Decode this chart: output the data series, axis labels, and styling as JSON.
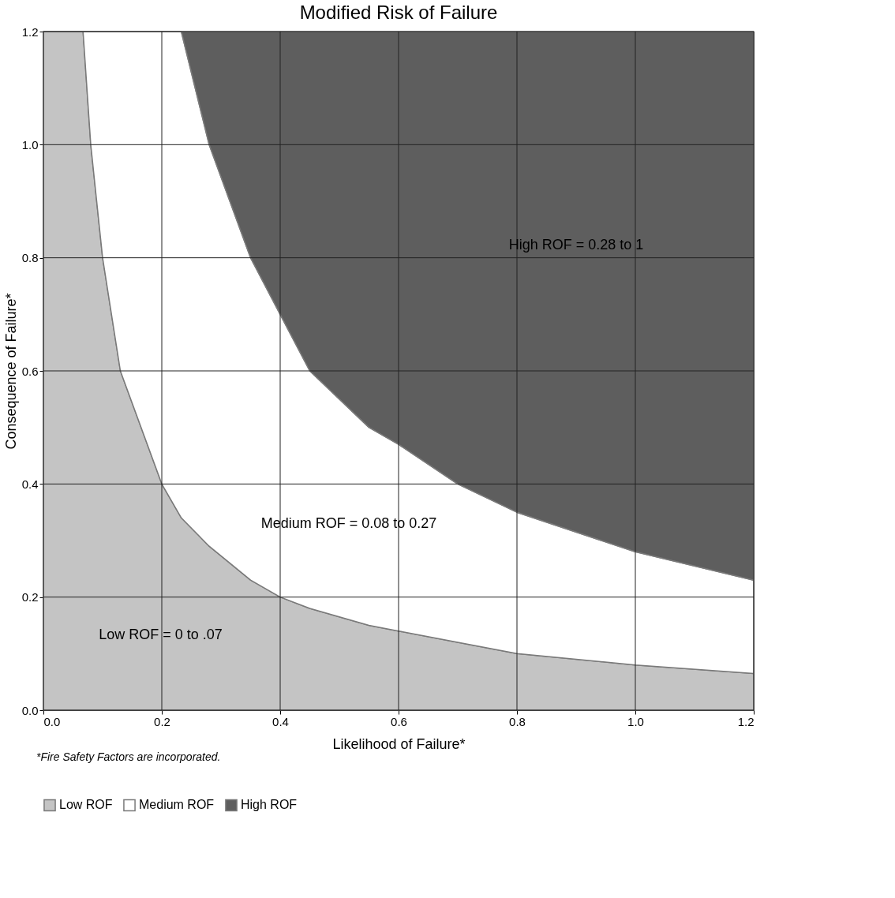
{
  "chart_data": {
    "type": "area",
    "stacked": true,
    "title": "Modified Risk of Failure",
    "xlabel": "Likelihood of Failure*",
    "ylabel": "Consequence of Failure*",
    "x": [
      0,
      0.067,
      0.08,
      0.1,
      0.13,
      0.2,
      0.233,
      0.28,
      0.35,
      0.4,
      0.45,
      0.55,
      0.6,
      0.7,
      0.8,
      1.0,
      1.2
    ],
    "series": [
      {
        "name": "Low ROF",
        "color": "#c4c4c4",
        "values": [
          1.2,
          1.2,
          1.0,
          0.8,
          0.6,
          0.4,
          0.34,
          0.29,
          0.23,
          0.2,
          0.18,
          0.15,
          0.14,
          0.12,
          0.1,
          0.08,
          0.065
        ]
      },
      {
        "name": "Medium ROF",
        "color": "#ffffff",
        "values": [
          0,
          0,
          0.2,
          0.4,
          0.6,
          0.8,
          0.86,
          0.71,
          0.57,
          0.5,
          0.42,
          0.35,
          0.33,
          0.28,
          0.25,
          0.2,
          0.165
        ]
      },
      {
        "name": "High ROF",
        "color": "#5e5e5e",
        "values": [
          0,
          0,
          0,
          0,
          0,
          0,
          0,
          0.2,
          0.4,
          0.5,
          0.6,
          0.7,
          0.73,
          0.8,
          0.85,
          0.92,
          0.97
        ]
      }
    ],
    "xlim": [
      0,
      1.2
    ],
    "ylim": [
      0,
      1.2
    ],
    "xticks": [
      {
        "value": 0,
        "label": "0.0"
      },
      0.2,
      0.4,
      0.6,
      0.8,
      {
        "value": 1,
        "label": "1.0"
      },
      1.2
    ],
    "yticks": [
      {
        "value": 0,
        "label": "0.0"
      },
      0.2,
      0.4,
      0.6,
      0.8,
      {
        "value": 1,
        "label": "1.0"
      },
      1.2
    ],
    "grid": true,
    "legend": "bottom",
    "annotations": [
      "High ROF = 0.28 to 1",
      "Medium ROF = 0.08 to 0.27",
      "Low ROF = 0 to .07",
      "*Fire Safety Factors are incorporated."
    ]
  }
}
